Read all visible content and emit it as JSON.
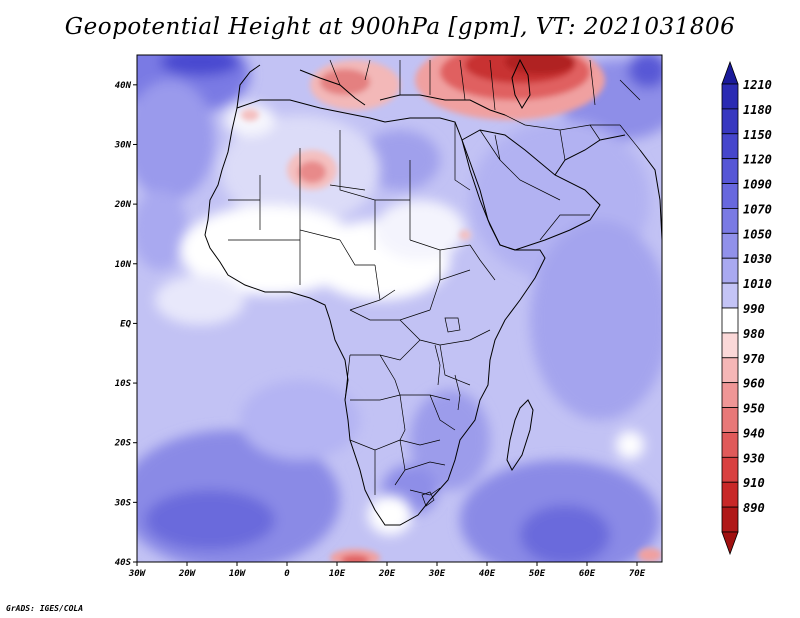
{
  "title": "Geopotential Height at 900hPa [gpm], VT: 2021031806",
  "credit": "GrADS: IGES/COLA",
  "map": {
    "variable": "Geopotential Height",
    "level": "900hPa",
    "units": "gpm",
    "valid_time": "2021031806",
    "lon_range": [
      -30,
      75
    ],
    "lat_range": [
      -40,
      45
    ],
    "lat_ticks": [
      {
        "value": 40,
        "label": "40N"
      },
      {
        "value": 30,
        "label": "30N"
      },
      {
        "value": 20,
        "label": "20N"
      },
      {
        "value": 10,
        "label": "10N"
      },
      {
        "value": 0,
        "label": "EQ"
      },
      {
        "value": -10,
        "label": "10S"
      },
      {
        "value": -20,
        "label": "20S"
      },
      {
        "value": -30,
        "label": "30S"
      },
      {
        "value": -40,
        "label": "40S"
      }
    ],
    "lon_ticks": [
      {
        "value": -30,
        "label": "30W"
      },
      {
        "value": -20,
        "label": "20W"
      },
      {
        "value": -10,
        "label": "10W"
      },
      {
        "value": 0,
        "label": "0"
      },
      {
        "value": 10,
        "label": "10E"
      },
      {
        "value": 20,
        "label": "20E"
      },
      {
        "value": 30,
        "label": "30E"
      },
      {
        "value": 40,
        "label": "40E"
      },
      {
        "value": 50,
        "label": "50E"
      },
      {
        "value": 60,
        "label": "60E"
      },
      {
        "value": 70,
        "label": "70E"
      }
    ]
  },
  "colorbar": {
    "levels": [
      {
        "label": "1210",
        "color": "#2b2bb3"
      },
      {
        "label": "1180",
        "color": "#3838c0"
      },
      {
        "label": "1150",
        "color": "#4646cc"
      },
      {
        "label": "1120",
        "color": "#5656d6"
      },
      {
        "label": "1090",
        "color": "#6868de"
      },
      {
        "label": "1070",
        "color": "#7a7ae4"
      },
      {
        "label": "1050",
        "color": "#9191ea"
      },
      {
        "label": "1030",
        "color": "#a9a9f0"
      },
      {
        "label": "1010",
        "color": "#c4c4f6"
      },
      {
        "label": "990",
        "color": "#ffffff"
      },
      {
        "label": "980",
        "color": "#fbd8d8"
      },
      {
        "label": "970",
        "color": "#f5b6b6"
      },
      {
        "label": "960",
        "color": "#ef9696"
      },
      {
        "label": "950",
        "color": "#e87878"
      },
      {
        "label": "940",
        "color": "#e05a5a"
      },
      {
        "label": "930",
        "color": "#d84040"
      },
      {
        "label": "910",
        "color": "#c82828"
      },
      {
        "label": "890",
        "color": "#b01818"
      }
    ],
    "top_cap_color": "#1a1a9a",
    "bottom_cap_color": "#a01010"
  }
}
